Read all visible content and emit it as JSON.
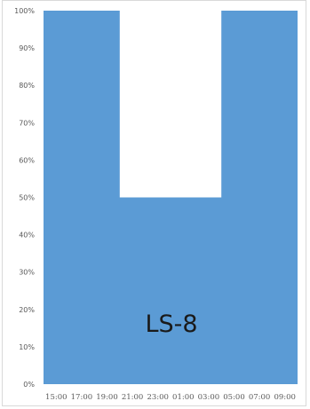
{
  "chart_data": {
    "type": "area",
    "title": "",
    "xlabel": "",
    "ylabel": "",
    "x": [
      "15:00",
      "17:00",
      "19:00",
      "21:00",
      "23:00",
      "01:00",
      "03:00",
      "05:00",
      "07:00",
      "09:00"
    ],
    "series": [
      {
        "values": [
          100,
          100,
          100,
          50,
          50,
          50,
          50,
          100,
          100,
          100
        ],
        "color": "#5b9bd5"
      }
    ],
    "ylim": [
      0,
      100
    ],
    "yticks": [
      "0%",
      "10%",
      "20%",
      "30%",
      "40%",
      "50%",
      "60%",
      "70%",
      "80%",
      "90%",
      "100%"
    ],
    "grid": false,
    "annotation": "LS-8"
  }
}
